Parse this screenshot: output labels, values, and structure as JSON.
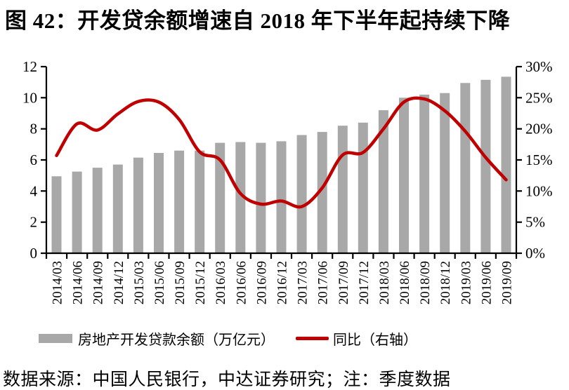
{
  "title": "图 42：开发贷余额增速自 2018 年下半年起持续下降",
  "legend": {
    "bar_label": "房地产开发贷款余额（万亿元）",
    "line_label": "同比（右轴）"
  },
  "footer": "数据来源：中国人民银行，中达证券研究；注：季度数据",
  "colors": {
    "bar": "#a8a8a8",
    "line": "#c00000",
    "axis": "#000000",
    "text": "#000000"
  },
  "chart_data": {
    "type": "combo-bar-line",
    "categories": [
      "2014/03",
      "2014/06",
      "2014/09",
      "2014/12",
      "2015/03",
      "2015/06",
      "2015/09",
      "2015/12",
      "2016/03",
      "2016/06",
      "2016/09",
      "2016/12",
      "2017/03",
      "2017/06",
      "2017/09",
      "2017/12",
      "2018/03",
      "2018/06",
      "2018/09",
      "2018/12",
      "2019/03",
      "2019/06",
      "2019/09"
    ],
    "series": [
      {
        "name": "房地产开发贷款余额（万亿元）",
        "type": "bar",
        "axis": "left",
        "values": [
          4.95,
          5.25,
          5.5,
          5.7,
          6.15,
          6.45,
          6.6,
          6.6,
          7.1,
          7.15,
          7.1,
          7.2,
          7.6,
          7.8,
          8.2,
          8.4,
          9.2,
          10.0,
          10.2,
          10.3,
          10.95,
          11.15,
          11.35
        ]
      },
      {
        "name": "同比（右轴）",
        "type": "line",
        "axis": "right",
        "values": [
          15.7,
          20.8,
          19.8,
          22.4,
          24.4,
          24.3,
          21.5,
          16.3,
          15.0,
          9.6,
          7.9,
          8.4,
          7.5,
          10.5,
          15.8,
          16.2,
          20.0,
          24.3,
          24.8,
          22.9,
          19.6,
          15.4,
          11.8
        ]
      }
    ],
    "left_axis": {
      "min": 0,
      "max": 12,
      "tick_values": [
        0,
        2,
        4,
        6,
        8,
        10,
        12
      ],
      "tick_labels": [
        "0",
        "2",
        "4",
        "6",
        "8",
        "10",
        "12"
      ]
    },
    "right_axis": {
      "min": 0,
      "max": 30,
      "tick_values": [
        0,
        5,
        10,
        15,
        20,
        25,
        30
      ],
      "tick_labels": [
        "0%",
        "5%",
        "10%",
        "15%",
        "20%",
        "25%",
        "30%"
      ]
    },
    "grid": false,
    "legend_position": "bottom"
  }
}
